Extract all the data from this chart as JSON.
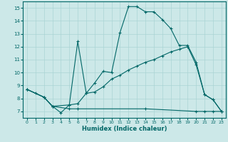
{
  "xlabel": "Humidex (Indice chaleur)",
  "bg_color": "#cce8e8",
  "line_color": "#006666",
  "ylim": [
    6.5,
    15.5
  ],
  "xlim": [
    -0.5,
    23.5
  ],
  "yticks": [
    7,
    8,
    9,
    10,
    11,
    12,
    13,
    14,
    15
  ],
  "xticks": [
    0,
    1,
    2,
    3,
    4,
    5,
    6,
    7,
    8,
    9,
    10,
    11,
    12,
    13,
    14,
    15,
    16,
    17,
    18,
    19,
    20,
    21,
    22,
    23
  ],
  "line1_x": [
    0,
    1,
    2,
    3,
    4,
    5,
    6,
    7,
    8,
    9,
    10,
    11,
    12,
    13,
    14,
    15,
    16,
    17,
    18,
    19,
    20,
    21,
    22,
    23
  ],
  "line1_y": [
    8.7,
    8.4,
    8.1,
    7.4,
    6.9,
    7.5,
    12.4,
    8.4,
    9.2,
    10.1,
    10.0,
    13.1,
    15.1,
    15.1,
    14.7,
    14.7,
    14.1,
    13.4,
    12.1,
    12.1,
    10.8,
    8.3,
    7.9,
    7.0
  ],
  "line2_x": [
    0,
    2,
    3,
    5,
    6,
    7,
    8,
    9,
    10,
    11,
    12,
    13,
    14,
    15,
    16,
    17,
    18,
    19,
    20,
    21,
    22,
    23
  ],
  "line2_y": [
    8.7,
    8.1,
    7.4,
    7.5,
    7.6,
    8.4,
    8.5,
    8.9,
    9.5,
    9.8,
    10.2,
    10.5,
    10.8,
    11.0,
    11.3,
    11.6,
    11.8,
    12.0,
    10.6,
    8.3,
    7.9,
    7.0
  ],
  "line3_x": [
    0,
    2,
    3,
    5,
    6,
    14,
    20,
    21,
    22,
    23
  ],
  "line3_y": [
    8.7,
    8.1,
    7.4,
    7.2,
    7.2,
    7.2,
    7.0,
    7.0,
    7.0,
    7.0
  ]
}
